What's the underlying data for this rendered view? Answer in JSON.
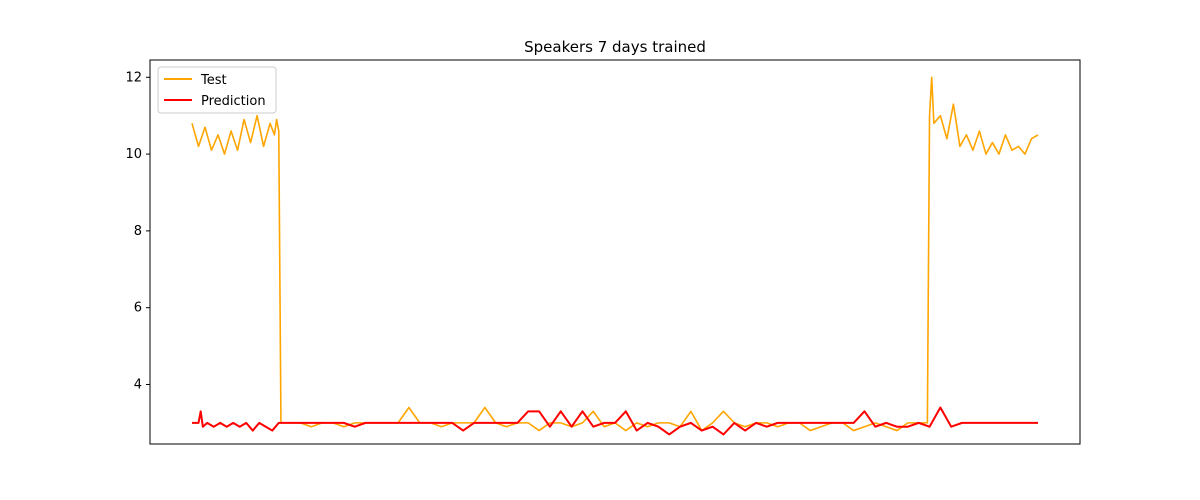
{
  "chart_data": {
    "type": "line",
    "title": "Speakers 7 days trained",
    "xlabel": "",
    "ylabel": "",
    "x_ticks_visible": false,
    "grid": false,
    "legend_position": "top-left",
    "ylim": [
      2.45,
      12.45
    ],
    "yticks": [
      4,
      6,
      8,
      10,
      12
    ],
    "series": [
      {
        "name": "Test",
        "color": "#FFA500",
        "description": "Observed values: high (~10-11) at the start and end, near 3 in the long middle section with small spikes",
        "x": [
          0,
          6,
          12,
          18,
          24,
          30,
          36,
          42,
          48,
          54,
          60,
          66,
          72,
          76,
          78,
          80,
          82,
          84,
          86,
          90,
          100,
          110,
          120,
          130,
          140,
          150,
          160,
          170,
          180,
          190,
          200,
          210,
          220,
          230,
          240,
          250,
          260,
          270,
          280,
          290,
          300,
          310,
          320,
          330,
          340,
          350,
          360,
          370,
          380,
          390,
          400,
          410,
          420,
          430,
          440,
          450,
          460,
          470,
          480,
          490,
          500,
          510,
          520,
          530,
          540,
          550,
          560,
          570,
          580,
          590,
          600,
          610,
          620,
          630,
          640,
          650,
          660,
          670,
          678,
          680,
          682,
          684,
          690,
          696,
          702,
          708,
          714,
          720,
          726,
          732,
          738,
          744,
          750,
          756,
          762,
          768,
          774,
          780
        ],
        "y": [
          10.8,
          10.2,
          10.7,
          10.1,
          10.5,
          10.0,
          10.6,
          10.1,
          10.9,
          10.3,
          11.0,
          10.2,
          10.8,
          10.5,
          10.9,
          10.6,
          3.0,
          3.0,
          3.0,
          3.0,
          3.0,
          2.9,
          3.0,
          3.0,
          2.9,
          3.0,
          3.0,
          3.0,
          3.0,
          3.0,
          3.4,
          3.0,
          3.0,
          2.9,
          3.0,
          3.0,
          3.0,
          3.4,
          3.0,
          2.9,
          3.0,
          3.0,
          2.8,
          3.0,
          3.0,
          2.9,
          3.0,
          3.3,
          2.9,
          3.0,
          2.8,
          3.0,
          2.9,
          3.0,
          3.0,
          2.9,
          3.3,
          2.8,
          3.0,
          3.3,
          3.0,
          2.9,
          3.0,
          3.0,
          2.9,
          3.0,
          3.0,
          2.8,
          2.9,
          3.0,
          3.0,
          2.8,
          2.9,
          3.0,
          2.9,
          2.8,
          3.0,
          3.0,
          3.0,
          11.0,
          12.0,
          10.8,
          11.0,
          10.4,
          11.3,
          10.2,
          10.5,
          10.1,
          10.6,
          10.0,
          10.3,
          10.0,
          10.5,
          10.1,
          10.2,
          10.0,
          10.4,
          10.5
        ]
      },
      {
        "name": "Prediction",
        "color": "#FF0000",
        "description": "Predicted values: flat near 3 with small downward and upward spikes",
        "x": [
          0,
          6,
          8,
          10,
          14,
          20,
          26,
          32,
          38,
          44,
          50,
          56,
          62,
          68,
          74,
          80,
          90,
          100,
          110,
          120,
          130,
          140,
          150,
          160,
          170,
          180,
          190,
          200,
          210,
          220,
          230,
          240,
          250,
          260,
          270,
          280,
          290,
          300,
          310,
          320,
          330,
          340,
          350,
          360,
          370,
          380,
          390,
          400,
          410,
          420,
          430,
          440,
          450,
          460,
          470,
          480,
          490,
          500,
          510,
          520,
          530,
          540,
          550,
          560,
          570,
          580,
          590,
          600,
          610,
          620,
          630,
          640,
          650,
          660,
          670,
          680,
          690,
          700,
          710,
          720,
          730,
          740,
          750,
          760,
          770,
          780
        ],
        "y": [
          3.0,
          3.0,
          3.3,
          2.9,
          3.0,
          2.9,
          3.0,
          2.9,
          3.0,
          2.9,
          3.0,
          2.8,
          3.0,
          2.9,
          2.8,
          3.0,
          3.0,
          3.0,
          3.0,
          3.0,
          3.0,
          3.0,
          2.9,
          3.0,
          3.0,
          3.0,
          3.0,
          3.0,
          3.0,
          3.0,
          3.0,
          3.0,
          2.8,
          3.0,
          3.0,
          3.0,
          3.0,
          3.0,
          3.3,
          3.3,
          2.9,
          3.3,
          2.9,
          3.3,
          2.9,
          3.0,
          3.0,
          3.3,
          2.8,
          3.0,
          2.9,
          2.7,
          2.9,
          3.0,
          2.8,
          2.9,
          2.7,
          3.0,
          2.8,
          3.0,
          2.9,
          3.0,
          3.0,
          3.0,
          3.0,
          3.0,
          3.0,
          3.0,
          3.0,
          3.3,
          2.9,
          3.0,
          2.9,
          2.9,
          3.0,
          2.9,
          3.4,
          2.9,
          3.0,
          3.0,
          3.0,
          3.0,
          3.0,
          3.0,
          3.0,
          3.0
        ]
      }
    ]
  }
}
